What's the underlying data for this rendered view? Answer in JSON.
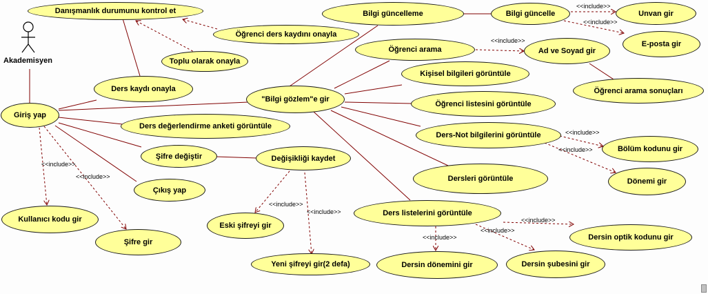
{
  "actor": {
    "name": "Akademisyen"
  },
  "use_cases": {
    "danismanlik": "Danışmanlık durumunu kontrol et",
    "ogr_ders_kaydi": "Öğrenci ders kaydını onayla",
    "toplu": "Toplu olarak onayla",
    "ders_kaydi_onayla": "Ders kaydı onayla",
    "giris": "Giriş yap",
    "bilgi_gozlem": "\"Bilgi gözlem\"e gir",
    "anket": "Ders değerlendirme anketi görüntüle",
    "sifre_degistir": "Şifre değiştir",
    "degisikligi_kaydet": "Değişikliği kaydet",
    "cikis": "Çıkış yap",
    "kullanici_kodu": "Kullanıcı kodu gir",
    "sifre_gir": "Şifre gir",
    "eski_sifre": "Eski şifreyi gir",
    "yeni_sifre": "Yeni şifreyi gir(2 defa)",
    "bilgi_guncelleme": "Bilgi güncelleme",
    "bilgi_guncelle": "Bilgi güncelle",
    "unvan": "Unvan gir",
    "eposta": "E-posta gir",
    "ogrenci_arama": "Öğrenci arama",
    "ad_soyad": "Ad ve Soyad gir",
    "arama_sonuclari": "Öğrenci arama sonuçları",
    "kisisel": "Kişisel bilgileri görüntüle",
    "ogr_listesi": "Öğrenci listesini görüntüle",
    "ders_not": "Ders-Not bilgilerini görüntüle",
    "bolum_kodu": "Bölüm kodunu gir",
    "donemi": "Dönemi gir",
    "dersleri": "Dersleri görüntüle",
    "ders_listeleri": "Ders listelerini görüntüle",
    "optik_kodu": "Dersin optik kodunu gir",
    "dersin_donemi": "Dersin dönemini gir",
    "subesi": "Dersin şubesini gir"
  },
  "include_label": "<<include>>"
}
